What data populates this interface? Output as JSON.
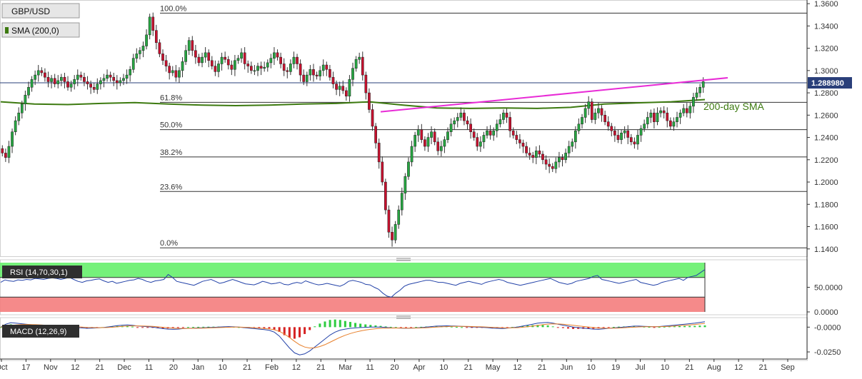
{
  "chart_data": [
    {
      "type": "candlestick",
      "name": "price-panel",
      "labels": {
        "symbol": "GBP/USD",
        "sma": "SMA (200,0)",
        "sma_annotation": "200-day SMA"
      },
      "last_price": "1.288980",
      "ylim": [
        1.136,
        1.362
      ],
      "y_ticks": [
        {
          "v": 1.36,
          "l": "1.3600"
        },
        {
          "v": 1.34,
          "l": "1.3400"
        },
        {
          "v": 1.32,
          "l": "1.3200"
        },
        {
          "v": 1.3,
          "l": "1.3000"
        },
        {
          "v": 1.28,
          "l": "1.2800"
        },
        {
          "v": 1.26,
          "l": "1.2600"
        },
        {
          "v": 1.24,
          "l": "1.2400"
        },
        {
          "v": 1.22,
          "l": "1.2200"
        },
        {
          "v": 1.2,
          "l": "1.2000"
        },
        {
          "v": 1.18,
          "l": "1.1800"
        },
        {
          "v": 1.16,
          "l": "1.1600"
        },
        {
          "v": 1.14,
          "l": "1.1400"
        }
      ],
      "fib_levels": [
        {
          "label": "100.0%",
          "v": 1.3515
        },
        {
          "label": "61.8%",
          "v": 1.2715
        },
        {
          "label": "50.0%",
          "v": 1.247
        },
        {
          "label": "38.2%",
          "v": 1.2225
        },
        {
          "label": "23.6%",
          "v": 1.1915
        },
        {
          "label": "0.0%",
          "v": 1.141
        }
      ],
      "trendline": {
        "x": [
          0.0,
          1.0
        ],
        "y": [
          1.263,
          1.2935
        ]
      },
      "sma_200": [
        1.272,
        1.27,
        1.2695,
        1.2705,
        1.2712,
        1.27,
        1.269,
        1.2685,
        1.269,
        1.27,
        1.2705,
        1.272,
        1.269,
        1.2665,
        1.266,
        1.2665,
        1.266,
        1.267,
        1.27,
        1.271,
        1.272,
        1.274
      ],
      "closes": [
        1.226,
        1.222,
        1.232,
        1.245,
        1.255,
        1.262,
        1.27,
        1.278,
        1.285,
        1.292,
        1.296,
        1.3,
        1.298,
        1.294,
        1.29,
        1.293,
        1.288,
        1.291,
        1.294,
        1.29,
        1.285,
        1.288,
        1.292,
        1.296,
        1.294,
        1.29,
        1.288,
        1.285,
        1.283,
        1.288,
        1.291,
        1.293,
        1.296,
        1.294,
        1.291,
        1.289,
        1.291,
        1.293,
        1.296,
        1.301,
        1.311,
        1.315,
        1.318,
        1.322,
        1.332,
        1.348,
        1.336,
        1.325,
        1.315,
        1.309,
        1.304,
        1.298,
        1.3,
        1.294,
        1.3,
        1.308,
        1.318,
        1.327,
        1.318,
        1.312,
        1.307,
        1.312,
        1.316,
        1.309,
        1.304,
        1.299,
        1.306,
        1.312,
        1.31,
        1.305,
        1.301,
        1.309,
        1.311,
        1.316,
        1.306,
        1.304,
        1.3,
        1.3,
        1.304,
        1.302,
        1.303,
        1.307,
        1.311,
        1.316,
        1.312,
        1.306,
        1.3,
        1.299,
        1.306,
        1.312,
        1.306,
        1.296,
        1.29,
        1.296,
        1.301,
        1.296,
        1.295,
        1.3,
        1.305,
        1.301,
        1.294,
        1.288,
        1.283,
        1.286,
        1.282,
        1.277,
        1.292,
        1.302,
        1.31,
        1.312,
        1.296,
        1.28,
        1.265,
        1.25,
        1.235,
        1.218,
        1.2,
        1.175,
        1.155,
        1.148,
        1.162,
        1.175,
        1.19,
        1.205,
        1.218,
        1.232,
        1.242,
        1.247,
        1.238,
        1.232,
        1.24,
        1.245,
        1.236,
        1.228,
        1.232,
        1.238,
        1.245,
        1.252,
        1.255,
        1.258,
        1.262,
        1.255,
        1.252,
        1.245,
        1.24,
        1.232,
        1.236,
        1.242,
        1.246,
        1.242,
        1.246,
        1.252,
        1.256,
        1.262,
        1.258,
        1.246,
        1.242,
        1.238,
        1.235,
        1.232,
        1.226,
        1.224,
        1.222,
        1.228,
        1.225,
        1.22,
        1.216,
        1.214,
        1.212,
        1.218,
        1.222,
        1.22,
        1.226,
        1.232,
        1.236,
        1.246,
        1.252,
        1.258,
        1.266,
        1.272,
        1.256,
        1.262,
        1.266,
        1.26,
        1.254,
        1.25,
        1.246,
        1.242,
        1.238,
        1.244,
        1.246,
        1.24,
        1.236,
        1.234,
        1.242,
        1.248,
        1.252,
        1.258,
        1.262,
        1.254,
        1.262,
        1.264,
        1.262,
        1.255,
        1.25,
        1.254,
        1.258,
        1.262,
        1.266,
        1.262,
        1.268,
        1.276,
        1.28,
        1.285,
        1.29
      ],
      "x_ticks": [
        "Oct",
        "17",
        "Nov",
        "12",
        "21",
        "Dec",
        "11",
        "20",
        "Jan",
        "10",
        "21",
        "Feb",
        "12",
        "21",
        "Mar",
        "11",
        "20",
        "Apr",
        "10",
        "21",
        "May",
        "12",
        "21",
        "Jun",
        "10",
        "19",
        "Jul",
        "10",
        "21",
        "Aug",
        "12",
        "21",
        "Sep"
      ]
    },
    {
      "type": "line",
      "name": "rsi-panel",
      "label": "RSI (14,70,30,1)",
      "ylim": [
        0,
        100
      ],
      "overbought": 70,
      "oversold": 30,
      "y_ticks": [
        {
          "v": 50,
          "l": "50.0000"
        },
        {
          "v": 0,
          "l": "0.0000"
        }
      ],
      "values": [
        60,
        65,
        63,
        62,
        65,
        64,
        66,
        65,
        68,
        67,
        66,
        68,
        69,
        68,
        66,
        68,
        70,
        66,
        62,
        60,
        63,
        64,
        66,
        67,
        63,
        60,
        62,
        58,
        60,
        62,
        64,
        65,
        68,
        66,
        62,
        60,
        63,
        64,
        66,
        76,
        70,
        62,
        60,
        58,
        56,
        54,
        58,
        62,
        64,
        66,
        62,
        58,
        60,
        63,
        66,
        63,
        60,
        57,
        56,
        55,
        58,
        62,
        60,
        57,
        58,
        60,
        56,
        55,
        58,
        60,
        58,
        63,
        60,
        57,
        55,
        56,
        58,
        56,
        54,
        52,
        56,
        62,
        64,
        62,
        60,
        56,
        55,
        50,
        46,
        38,
        32,
        30,
        38,
        44,
        52,
        56,
        58,
        60,
        62,
        64,
        64,
        62,
        60,
        60,
        58,
        56,
        54,
        58,
        60,
        62,
        60,
        58,
        56,
        60,
        62,
        64,
        66,
        64,
        60,
        58,
        56,
        54,
        56,
        58,
        60,
        62,
        64,
        66,
        68,
        64,
        60,
        58,
        56,
        58,
        62,
        64,
        66,
        68,
        72,
        74,
        66,
        64,
        62,
        60,
        58,
        60,
        62,
        64,
        66,
        60,
        58,
        56,
        54,
        56,
        60,
        62,
        64,
        66,
        68,
        64,
        70,
        72,
        74,
        80,
        86
      ]
    },
    {
      "type": "macd",
      "name": "macd-panel",
      "label": "MACD (12,26,9)",
      "ylim": [
        -0.03,
        0.006
      ],
      "y_ticks": [
        {
          "v": 0,
          "l": "-0.0000"
        },
        {
          "v": -0.025,
          "l": "-0.0250"
        }
      ],
      "macd": [
        0.0,
        0.003,
        0.0045,
        0.004,
        0.0035,
        0.003,
        0.0025,
        0.002,
        0.0015,
        0.001,
        0.0008,
        0.0006,
        0.0004,
        0.0002,
        0.0,
        -0.0005,
        -0.0008,
        -0.0012,
        -0.001,
        -0.0008,
        -0.0005,
        0.0,
        0.0008,
        0.0015,
        0.002,
        0.0022,
        0.0018,
        0.0012,
        0.0008,
        0.0004,
        0.0,
        -0.0008,
        -0.0015,
        -0.002,
        -0.0022,
        -0.002,
        -0.0015,
        -0.0012,
        -0.001,
        -0.0008,
        -0.0006,
        -0.0004,
        -0.0002,
        0.0,
        0.0003,
        0.0005,
        0.0003,
        0.0,
        -0.0005,
        -0.001,
        -0.0015,
        -0.002,
        -0.0025,
        -0.0032,
        -0.005,
        -0.009,
        -0.015,
        -0.021,
        -0.026,
        -0.028,
        -0.027,
        -0.024,
        -0.02,
        -0.016,
        -0.012,
        -0.008,
        -0.005,
        -0.003,
        -0.002,
        -0.0012,
        -0.0008,
        -0.0004,
        -0.0002,
        0.0,
        0.0001,
        0.0,
        -0.0003,
        -0.0006,
        -0.0008,
        -0.001,
        -0.0012,
        -0.001,
        -0.0008,
        -0.0005,
        0.0,
        0.0005,
        0.001,
        0.0012,
        0.0013,
        0.0012,
        0.001,
        0.0008,
        0.0005,
        0.0002,
        0.0,
        -0.0002,
        -0.0005,
        -0.001,
        -0.0012,
        -0.0015,
        -0.001,
        -0.0005,
        0.0,
        0.001,
        0.002,
        0.003,
        0.004,
        0.0045,
        0.0048,
        0.004,
        0.003,
        0.002,
        0.001,
        0.0,
        -0.0005,
        -0.001,
        -0.0015,
        -0.002,
        -0.0022,
        -0.0018,
        -0.0012,
        -0.0008,
        -0.0004,
        0.0,
        0.0005,
        0.001,
        0.001,
        0.0008,
        0.0006,
        0.0004,
        0.0006,
        0.001,
        0.0015,
        0.002,
        0.0025,
        0.003,
        0.0035,
        0.004,
        0.0048,
        0.0055
      ]
    }
  ]
}
